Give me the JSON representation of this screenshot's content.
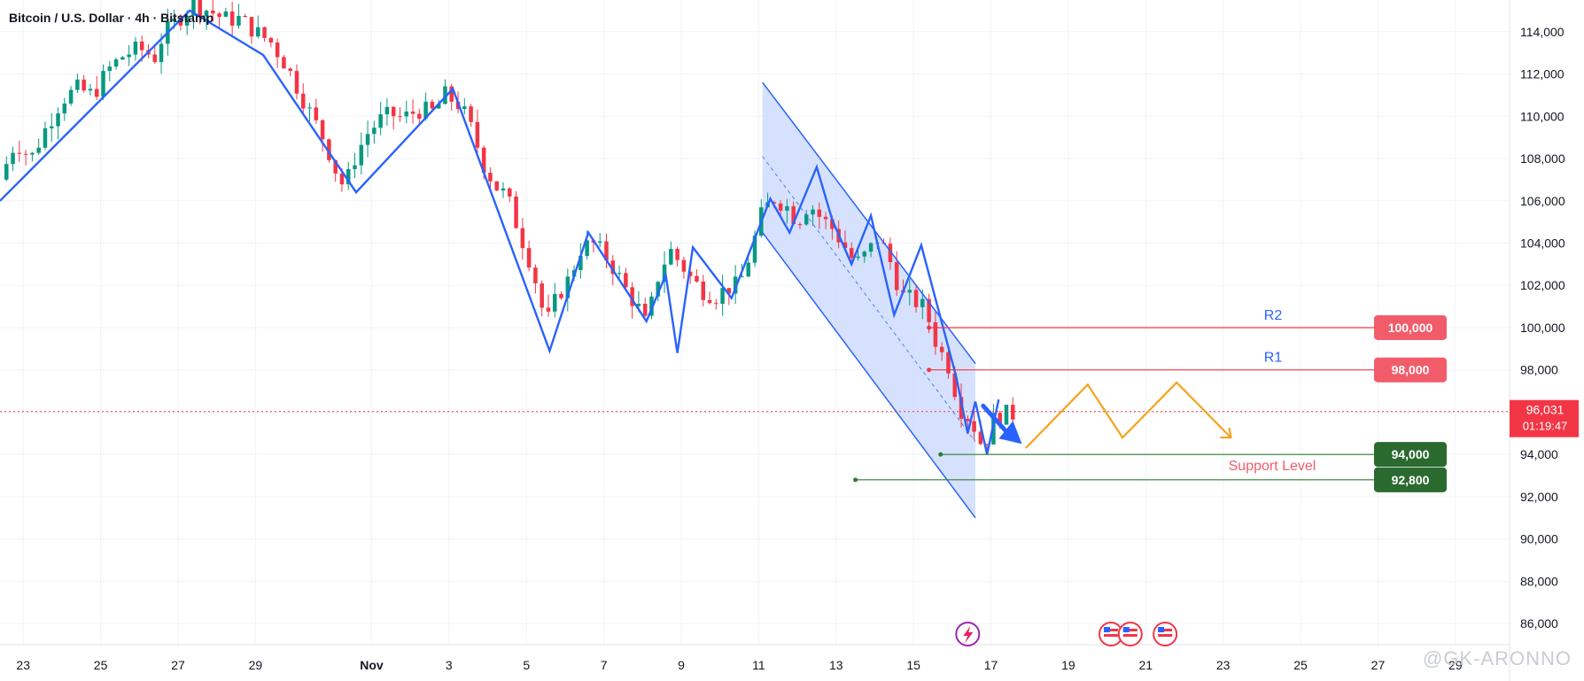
{
  "title": "Bitcoin / U.S. Dollar · 4h · Bitstamp",
  "watermark": "@GK-ARONNO",
  "colors": {
    "up": "#089981",
    "down": "#f23645",
    "trend": "#2962ff",
    "channel_fill": "#cfdcfd",
    "projection": "#f7a21b",
    "resistance": "#f23645",
    "support": "#2e7d32",
    "current": "#f23645"
  },
  "chart_data": {
    "type": "candlestick",
    "y_axis": {
      "min": 85000,
      "max": 115500,
      "ticks": [
        86000,
        88000,
        90000,
        92000,
        94000,
        96000,
        98000,
        100000,
        102000,
        104000,
        106000,
        108000,
        110000,
        112000,
        114000
      ],
      "tick_labels": [
        "86,000",
        "88,000",
        "90,000",
        "92,000",
        "94,000",
        "96,000",
        "98,000",
        "100,000",
        "102,000",
        "104,000",
        "106,000",
        "108,000",
        "110,000",
        "112,000",
        "114,000"
      ]
    },
    "x_axis": {
      "range": [
        -0.6,
        38.4
      ],
      "ticks": [
        0,
        2,
        4,
        6,
        9,
        11,
        13,
        15,
        17,
        19,
        21,
        23,
        25,
        27,
        29,
        31,
        33,
        35,
        37
      ],
      "tick_labels": [
        "23",
        "25",
        "27",
        "29",
        "Nov",
        "3",
        "5",
        "7",
        "9",
        "11",
        "13",
        "15",
        "17",
        "19",
        "21",
        "23",
        "25",
        "27",
        "29"
      ]
    },
    "candle_path": [
      [
        -0.6,
        107000
      ],
      [
        -0.2,
        108800
      ],
      [
        0.2,
        108000
      ],
      [
        0.6,
        109500
      ],
      [
        1,
        110800
      ],
      [
        1.4,
        111300
      ],
      [
        1.8,
        111000
      ],
      [
        2.2,
        112200
      ],
      [
        2.6,
        112900
      ],
      [
        3,
        113200
      ],
      [
        3.4,
        112800
      ],
      [
        3.6,
        113800
      ],
      [
        4,
        114600
      ],
      [
        4.4,
        115300
      ],
      [
        4.8,
        115000
      ],
      [
        5.2,
        114600
      ],
      [
        5.6,
        114600
      ],
      [
        6,
        114000
      ],
      [
        6.4,
        113500
      ],
      [
        6.8,
        112400
      ],
      [
        7.1,
        111300
      ],
      [
        7.4,
        110200
      ],
      [
        7.8,
        108800
      ],
      [
        8.1,
        107300
      ],
      [
        8.3,
        106600
      ],
      [
        8.6,
        108200
      ],
      [
        8.9,
        109200
      ],
      [
        9.2,
        109800
      ],
      [
        9.5,
        110100
      ],
      [
        9.8,
        109900
      ],
      [
        10.2,
        110300
      ],
      [
        10.6,
        110200
      ],
      [
        10.9,
        111000
      ],
      [
        11.3,
        110500
      ],
      [
        11.6,
        109300
      ],
      [
        11.9,
        107700
      ],
      [
        12.2,
        106700
      ],
      [
        12.5,
        106200
      ],
      [
        12.8,
        104600
      ],
      [
        13.1,
        103100
      ],
      [
        13.3,
        101800
      ],
      [
        13.5,
        100100
      ],
      [
        13.8,
        101500
      ],
      [
        14.1,
        102300
      ],
      [
        14.4,
        103700
      ],
      [
        14.7,
        104000
      ],
      [
        15,
        103500
      ],
      [
        15.3,
        102700
      ],
      [
        15.6,
        101700
      ],
      [
        15.9,
        100900
      ],
      [
        16.1,
        100100
      ],
      [
        16.4,
        102400
      ],
      [
        16.7,
        103700
      ],
      [
        17,
        103000
      ],
      [
        17.3,
        102200
      ],
      [
        17.6,
        101700
      ],
      [
        17.9,
        101500
      ],
      [
        18.2,
        101900
      ],
      [
        18.5,
        102000
      ],
      [
        18.8,
        103600
      ],
      [
        19.1,
        105500
      ],
      [
        19.4,
        106100
      ],
      [
        19.7,
        105800
      ],
      [
        20,
        105000
      ],
      [
        20.3,
        105900
      ],
      [
        20.6,
        105200
      ],
      [
        20.9,
        104700
      ],
      [
        21.2,
        103900
      ],
      [
        21.5,
        103000
      ],
      [
        21.8,
        103500
      ],
      [
        22.1,
        104300
      ],
      [
        22.4,
        103100
      ],
      [
        22.7,
        101500
      ],
      [
        23,
        101300
      ],
      [
        23.3,
        100900
      ],
      [
        23.6,
        99200
      ],
      [
        23.9,
        98200
      ],
      [
        24.2,
        96200
      ],
      [
        24.5,
        95600
      ],
      [
        24.8,
        94300
      ],
      [
        25.1,
        95800
      ],
      [
        25.4,
        95900
      ],
      [
        25.6,
        95900
      ]
    ],
    "zigzag": [
      [
        -0.6,
        106000
      ],
      [
        4.3,
        115000
      ],
      [
        6.2,
        112900
      ],
      [
        8.6,
        106400
      ],
      [
        11.1,
        111300
      ],
      [
        13.6,
        98900
      ],
      [
        14.6,
        104500
      ],
      [
        16.1,
        100300
      ],
      [
        16.6,
        102500
      ],
      [
        16.9,
        98800
      ],
      [
        17.3,
        103800
      ],
      [
        18.3,
        101400
      ],
      [
        19.3,
        106100
      ],
      [
        19.8,
        104500
      ],
      [
        20.5,
        107600
      ],
      [
        20.9,
        105100
      ],
      [
        21.4,
        103000
      ],
      [
        21.9,
        105300
      ],
      [
        22.5,
        100600
      ],
      [
        23.2,
        103900
      ],
      [
        24.1,
        97700
      ],
      [
        24.4,
        95000
      ],
      [
        24.6,
        96500
      ],
      [
        24.9,
        94000
      ],
      [
        25.2,
        96600
      ]
    ],
    "channel": {
      "top_start": [
        19.1,
        111600
      ],
      "top_end": [
        24.6,
        98300
      ],
      "bottom_start": [
        19.1,
        104500
      ],
      "bottom_end": [
        24.6,
        91000
      ],
      "midline_start": [
        19.1,
        108100
      ],
      "midline_end": [
        24.6,
        94600
      ]
    },
    "arrow": {
      "from": [
        24.8,
        96300
      ],
      "to": [
        25.8,
        94500
      ]
    },
    "projection": [
      [
        25.9,
        94300
      ],
      [
        27.5,
        97300
      ],
      [
        28.4,
        94800
      ],
      [
        29.8,
        97400
      ],
      [
        31.2,
        94800
      ]
    ],
    "levels": [
      {
        "name": "R2",
        "value": 100000,
        "label": "100,000",
        "start": 23.4,
        "kind": "resistance"
      },
      {
        "name": "R1",
        "value": 98000,
        "label": "98,000",
        "start": 23.4,
        "kind": "resistance"
      },
      {
        "name": "",
        "value": 94000,
        "label": "94,000",
        "start": 23.7,
        "kind": "support"
      },
      {
        "name": "",
        "value": 92800,
        "label": "92,800",
        "start": 21.5,
        "kind": "support"
      }
    ],
    "support_label": "Support Level",
    "current_price": {
      "value": 96031,
      "label": "96,031",
      "countdown": "01:19:47"
    }
  }
}
